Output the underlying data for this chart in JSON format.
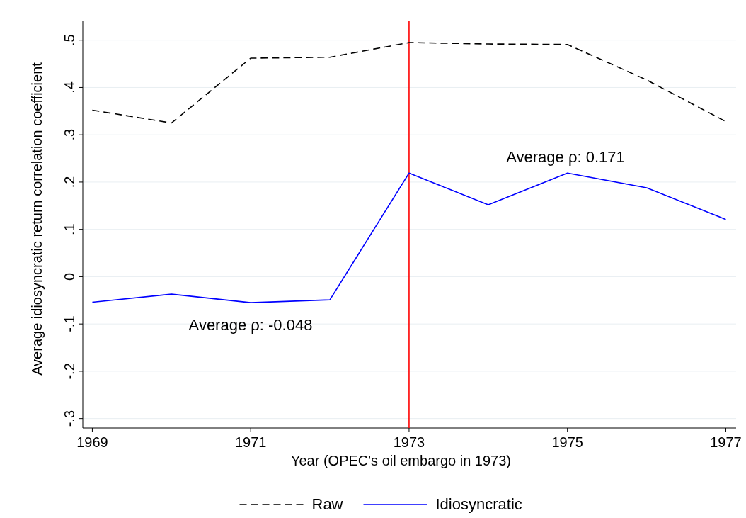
{
  "chart_data": {
    "type": "line",
    "xlabel": "Year (OPEC's oil embargo in 1973)",
    "ylabel": "Average idiosyncratic return correlation coefficient",
    "x": [
      1969,
      1970,
      1971,
      1972,
      1973,
      1974,
      1975,
      1976,
      1977
    ],
    "series": [
      {
        "name": "Raw",
        "color": "#000000",
        "line_style": "dashed",
        "values": [
          0.352,
          0.325,
          0.462,
          0.464,
          0.495,
          0.492,
          0.491,
          0.416,
          0.328
        ]
      },
      {
        "name": "Idiosyncratic",
        "color": "#0000ff",
        "line_style": "solid",
        "values": [
          -0.054,
          -0.037,
          -0.055,
          -0.049,
          0.219,
          0.152,
          0.219,
          0.188,
          0.121
        ]
      }
    ],
    "xlim": [
      1968.88,
      1977.13
    ],
    "ylim": [
      -0.32,
      0.54
    ],
    "xticks": [
      1969,
      1971,
      1973,
      1975,
      1977
    ],
    "yticks": [
      {
        "value": -0.3,
        "label": "-.3"
      },
      {
        "value": -0.2,
        "label": "-.2"
      },
      {
        "value": -0.1,
        "label": "-.1"
      },
      0,
      {
        "value": 0.1,
        "label": ".1"
      },
      {
        "value": 0.2,
        "label": ".2"
      },
      {
        "value": 0.3,
        "label": ".3"
      },
      {
        "value": 0.4,
        "label": ".4"
      },
      {
        "value": 0.5,
        "label": ".5"
      }
    ],
    "grid": "y",
    "legend": "bottom",
    "marker": "none",
    "ref_lines": [
      {
        "axis": "x",
        "value": 1973,
        "color": "#ff0000"
      }
    ],
    "annotations": [
      "Average ρ: -0.048",
      "Average ρ: 0.171"
    ]
  }
}
